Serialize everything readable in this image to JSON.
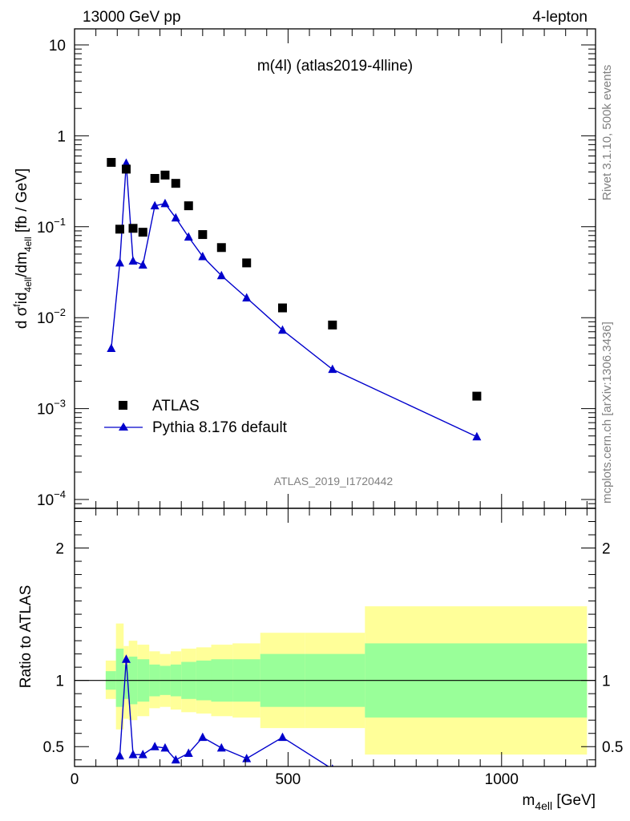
{
  "header": {
    "left": "13000 GeV pp",
    "right": "4-lepton"
  },
  "side": {
    "rivet": "Rivet 3.1.10,  500k events",
    "mcplots": "mcplots.cern.ch [arXiv:1306.3436]"
  },
  "chart_data": [
    {
      "type": "scatter",
      "title": "m(4l) (atlas2019-4lline)",
      "watermark": "ATLAS_2019_I1720442",
      "ylabel": {
        "pre": "d σ",
        "sup1": "f",
        "mid1": "id",
        "sub1": "4ell",
        "mid2": "/dm",
        "sub2": "4ell",
        "post": " [fb / GeV]"
      },
      "yscale": "log",
      "ylim": [
        8e-05,
        15
      ],
      "xlim": [
        0,
        1220
      ],
      "y_ticks": [
        {
          "v": 10,
          "base": "10",
          "exp": ""
        },
        {
          "v": 1,
          "base": "1",
          "exp": ""
        },
        {
          "v": 0.1,
          "base": "10",
          "exp": "−1"
        },
        {
          "v": 0.01,
          "base": "10",
          "exp": "−2"
        },
        {
          "v": 0.001,
          "base": "10",
          "exp": "−3"
        },
        {
          "v": 0.0001,
          "base": "10",
          "exp": "−4"
        }
      ],
      "legend_position": "lower-left",
      "series": [
        {
          "name": "ATLAS",
          "marker": "square",
          "color": "#000000",
          "x": [
            86,
            106,
            121,
            137,
            160,
            188,
            212,
            237,
            267,
            300,
            344,
            403,
            487,
            604,
            942
          ],
          "y": [
            0.51,
            0.094,
            0.43,
            0.096,
            0.087,
            0.34,
            0.37,
            0.3,
            0.17,
            0.082,
            0.059,
            0.04,
            0.0128,
            0.0083,
            0.00137
          ]
        },
        {
          "name": "Pythia 8.176 default",
          "marker": "triangle",
          "color": "#0000cc",
          "x": [
            86,
            106,
            121,
            137,
            160,
            188,
            212,
            237,
            267,
            300,
            344,
            403,
            487,
            604,
            942
          ],
          "y": [
            0.0046,
            0.04,
            0.5,
            0.042,
            0.038,
            0.17,
            0.18,
            0.125,
            0.077,
            0.047,
            0.029,
            0.0165,
            0.0073,
            0.0027,
            0.00049
          ]
        }
      ]
    },
    {
      "type": "line",
      "ylabel": "Ratio to ATLAS",
      "xlabel": {
        "pre": "m",
        "sub": "4ell",
        "post": " [GeV]"
      },
      "ylim": [
        0.35,
        2.3
      ],
      "xlim": [
        0,
        1220
      ],
      "y_ticks_left": [
        "0.5",
        "1",
        "2"
      ],
      "y_ticks_right": [
        "0.5",
        "1",
        "2"
      ],
      "x_ticks": [
        {
          "v": 0,
          "label": "0"
        },
        {
          "v": 500,
          "label": "500"
        },
        {
          "v": 1000,
          "label": "1000"
        }
      ],
      "bands": {
        "inner_color": "#99ff99",
        "outer_color": "#ffff99",
        "bins": [
          {
            "x0": 73,
            "x1": 97,
            "lo1": 0.93,
            "hi1": 1.07,
            "lo2": 0.86,
            "hi2": 1.15
          },
          {
            "x0": 97,
            "x1": 115,
            "lo1": 0.8,
            "hi1": 1.24,
            "lo2": 0.63,
            "hi2": 1.43
          },
          {
            "x0": 115,
            "x1": 127,
            "lo1": 0.86,
            "hi1": 1.12,
            "lo2": 0.71,
            "hi2": 1.26
          },
          {
            "x0": 127,
            "x1": 147,
            "lo1": 0.82,
            "hi1": 1.18,
            "lo2": 0.7,
            "hi2": 1.3
          },
          {
            "x0": 147,
            "x1": 175,
            "lo1": 0.84,
            "hi1": 1.16,
            "lo2": 0.73,
            "hi2": 1.27
          },
          {
            "x0": 175,
            "x1": 200,
            "lo1": 0.88,
            "hi1": 1.12,
            "lo2": 0.79,
            "hi2": 1.22
          },
          {
            "x0": 200,
            "x1": 225,
            "lo1": 0.89,
            "hi1": 1.11,
            "lo2": 0.8,
            "hi2": 1.2
          },
          {
            "x0": 225,
            "x1": 250,
            "lo1": 0.88,
            "hi1": 1.12,
            "lo2": 0.78,
            "hi2": 1.22
          },
          {
            "x0": 250,
            "x1": 285,
            "lo1": 0.86,
            "hi1": 1.14,
            "lo2": 0.76,
            "hi2": 1.24
          },
          {
            "x0": 285,
            "x1": 320,
            "lo1": 0.85,
            "hi1": 1.15,
            "lo2": 0.75,
            "hi2": 1.25
          },
          {
            "x0": 320,
            "x1": 370,
            "lo1": 0.84,
            "hi1": 1.16,
            "lo2": 0.73,
            "hi2": 1.27
          },
          {
            "x0": 370,
            "x1": 435,
            "lo1": 0.84,
            "hi1": 1.16,
            "lo2": 0.72,
            "hi2": 1.28
          },
          {
            "x0": 435,
            "x1": 540,
            "lo1": 0.8,
            "hi1": 1.2,
            "lo2": 0.64,
            "hi2": 1.36
          },
          {
            "x0": 540,
            "x1": 680,
            "lo1": 0.8,
            "hi1": 1.2,
            "lo2": 0.64,
            "hi2": 1.36
          },
          {
            "x0": 680,
            "x1": 1200,
            "lo1": 0.72,
            "hi1": 1.28,
            "lo2": 0.44,
            "hi2": 1.56
          }
        ]
      },
      "series": [
        {
          "name": "Pythia 8.176 default",
          "color": "#0000cc",
          "x": [
            106,
            121,
            137,
            160,
            188,
            212,
            237,
            267,
            300,
            344,
            403,
            487,
            604
          ],
          "y": [
            0.43,
            1.16,
            0.44,
            0.44,
            0.5,
            0.49,
            0.4,
            0.45,
            0.57,
            0.49,
            0.41,
            0.57,
            0.33
          ]
        }
      ]
    }
  ]
}
